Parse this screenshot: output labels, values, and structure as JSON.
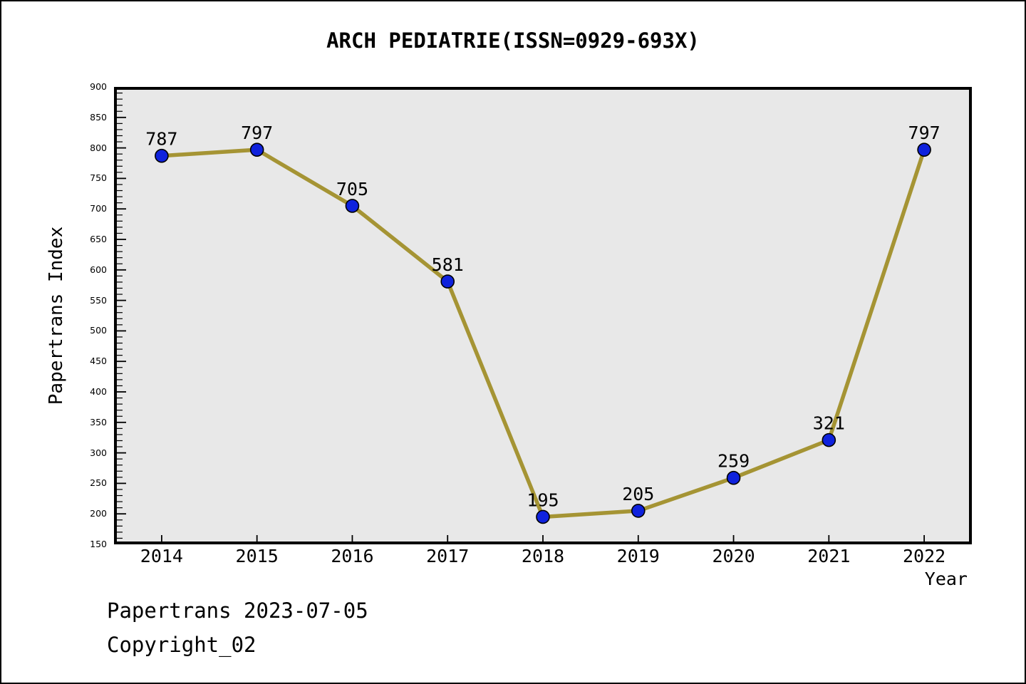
{
  "title": "ARCH PEDIATRIE(ISSN=0929-693X)",
  "footer": {
    "line1": "Papertrans 2023-07-05",
    "line2": "Copyright_02"
  },
  "chart_data": {
    "type": "line",
    "title": "ARCH PEDIATRIE(ISSN=0929-693X)",
    "categories": [
      "2014",
      "2015",
      "2016",
      "2017",
      "2018",
      "2019",
      "2020",
      "2021",
      "2022"
    ],
    "values": [
      787,
      797,
      705,
      581,
      195,
      205,
      259,
      321,
      797
    ],
    "xlabel": "Year",
    "ylabel": "Papertrans Index",
    "ylim": [
      150,
      900
    ],
    "ytick_major": 50,
    "ytick_minor": 10,
    "grid": false,
    "legend": null,
    "colors": {
      "line": "#a59434",
      "marker": "#0f22dd",
      "marker_edge": "#000000",
      "plot_background": "#e8e8e8",
      "spine": "#000000",
      "text": "#000000"
    }
  }
}
